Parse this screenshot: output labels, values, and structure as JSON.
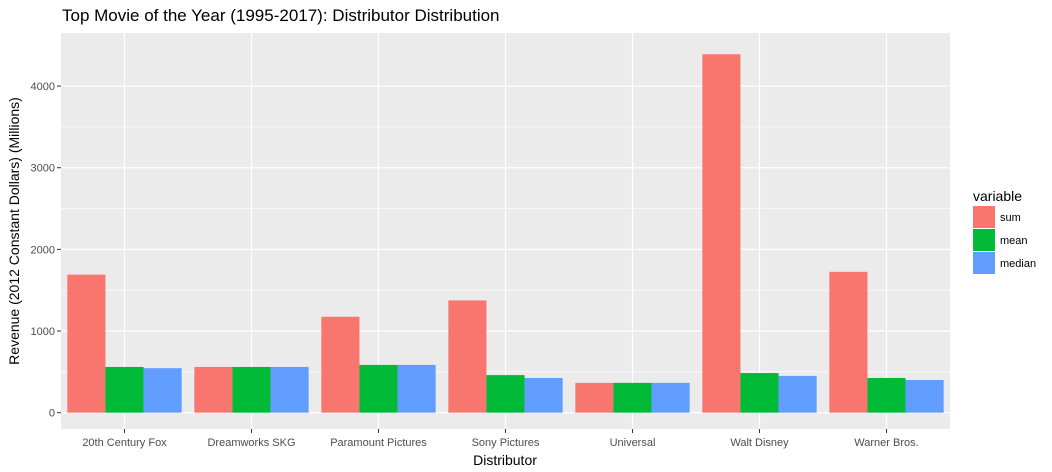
{
  "chart_data": {
    "type": "bar",
    "title": "Top Movie of the Year (1995-2017): Distributor Distribution",
    "xlabel": "Distributor",
    "ylabel": "Revenue (2012 Constant Dollars) (Millions)",
    "categories": [
      "20th Century Fox",
      "Dreamworks SKG",
      "Paramount Pictures",
      "Sony Pictures",
      "Universal",
      "Walt Disney",
      "Warner Bros."
    ],
    "series": [
      {
        "name": "sum",
        "color": "#F8766D",
        "values": [
          1690,
          560,
          1175,
          1375,
          365,
          4390,
          1725
        ]
      },
      {
        "name": "mean",
        "color": "#00BA38",
        "values": [
          560,
          560,
          585,
          460,
          365,
          485,
          425
        ]
      },
      {
        "name": "median",
        "color": "#619CFF",
        "values": [
          545,
          560,
          585,
          425,
          365,
          450,
          400
        ]
      }
    ],
    "ylim": [
      -200,
      4650
    ],
    "yticks": [
      0,
      1000,
      2000,
      3000,
      4000
    ],
    "legend_title": "variable",
    "legend_position": "right",
    "grid": true
  }
}
